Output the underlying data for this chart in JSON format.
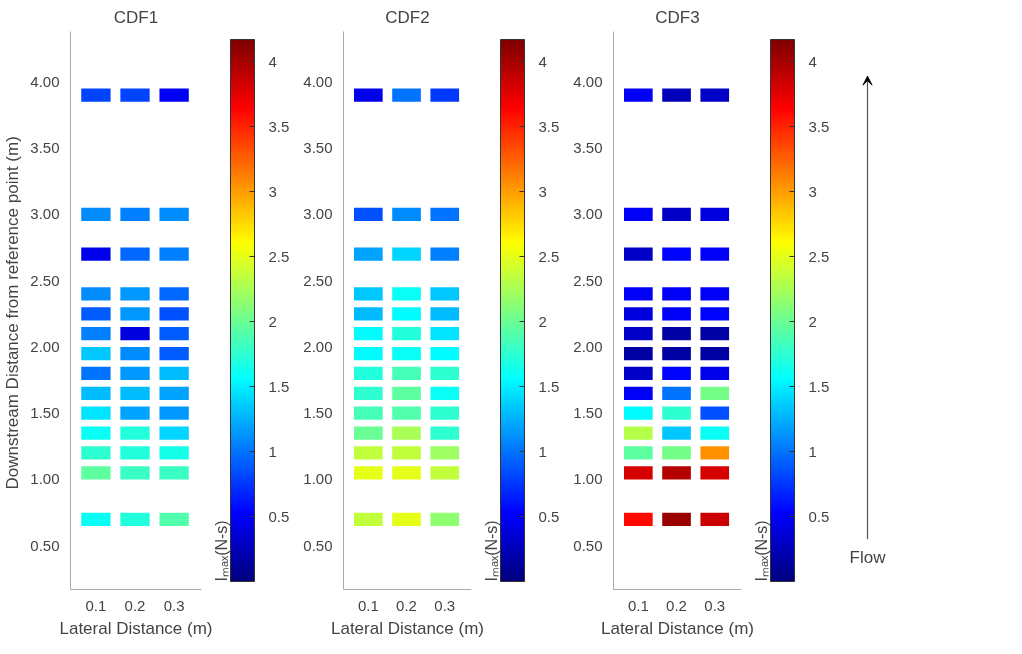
{
  "chart_data": [
    {
      "type": "scatter",
      "title": "CDF1",
      "xlabel": "Lateral Distance (m)",
      "ylabel": "Downstream  Distance from reference point (m)",
      "clabel": "Iₘₐₓ(N-s)",
      "marker": "square",
      "grid": false,
      "xlim": [
        0.035,
        0.37
      ],
      "ylim": [
        0.17,
        4.38
      ],
      "xticks": [
        0.1,
        0.2,
        0.3
      ],
      "yticks": [
        {
          "value": 0.5,
          "label": "0.50"
        },
        {
          "value": 1,
          "label": "1.00"
        },
        {
          "value": 1.5,
          "label": "1.50"
        },
        {
          "value": 2,
          "label": "2.00"
        },
        {
          "value": 2.5,
          "label": "2.50"
        },
        {
          "value": 3,
          "label": "3.00"
        },
        {
          "value": 3.5,
          "label": "3.50"
        },
        {
          "value": 4,
          "label": "4.00"
        }
      ],
      "clim": [
        0,
        4.17
      ],
      "cticks": [
        0.5,
        1,
        1.5,
        2,
        2.5,
        3,
        3.5,
        4
      ],
      "x": [
        0.1,
        0.2,
        0.3,
        0.1,
        0.2,
        0.3,
        0.1,
        0.2,
        0.3,
        0.1,
        0.2,
        0.3,
        0.1,
        0.2,
        0.3,
        0.1,
        0.2,
        0.3,
        0.1,
        0.2,
        0.3,
        0.1,
        0.2,
        0.3,
        0.1,
        0.2,
        0.3,
        0.1,
        0.2,
        0.3,
        0.1,
        0.2,
        0.3,
        0.1,
        0.2,
        0.3,
        0.1,
        0.2,
        0.3,
        0.1,
        0.2,
        0.3
      ],
      "values": [
        3.9,
        3.9,
        3.9,
        3.0,
        3.0,
        3.0,
        2.7,
        2.7,
        2.7,
        2.4,
        2.4,
        2.4,
        2.25,
        2.25,
        2.25,
        2.1,
        2.1,
        2.1,
        1.95,
        1.95,
        1.95,
        1.8,
        1.8,
        1.8,
        1.65,
        1.65,
        1.65,
        1.5,
        1.5,
        1.5,
        1.35,
        1.35,
        1.35,
        1.2,
        1.2,
        1.2,
        1.05,
        1.05,
        1.05,
        0.7,
        0.7,
        0.7
      ],
      "cvalues": [
        0.8,
        0.8,
        0.5,
        1.1,
        1.05,
        1.1,
        0.45,
        0.95,
        1.05,
        1.1,
        1.15,
        0.95,
        0.9,
        1.15,
        0.85,
        1.05,
        0.4,
        0.9,
        1.35,
        1.1,
        0.9,
        1.0,
        1.15,
        1.3,
        1.3,
        1.3,
        1.2,
        1.45,
        1.2,
        1.15,
        1.6,
        1.7,
        1.4,
        1.75,
        1.7,
        1.65,
        1.95,
        1.8,
        1.8,
        1.6,
        1.7,
        1.9
      ]
    },
    {
      "type": "scatter",
      "title": "CDF2",
      "xlabel": "Lateral Distance (m)",
      "clabel": "Iₘₐₓ(N-s)",
      "marker": "square",
      "grid": false,
      "xlim": [
        0.035,
        0.37
      ],
      "ylim": [
        0.17,
        4.38
      ],
      "xticks": [
        0.1,
        0.2,
        0.3
      ],
      "yticks": [
        {
          "value": 0.5,
          "label": "0.50"
        },
        {
          "value": 1,
          "label": "1.00"
        },
        {
          "value": 1.5,
          "label": "1.50"
        },
        {
          "value": 2,
          "label": "2.00"
        },
        {
          "value": 2.5,
          "label": "2.50"
        },
        {
          "value": 3,
          "label": "3.00"
        },
        {
          "value": 3.5,
          "label": "3.50"
        },
        {
          "value": 4,
          "label": "4.00"
        }
      ],
      "clim": [
        0,
        4.17
      ],
      "cticks": [
        0.5,
        1,
        1.5,
        2,
        2.5,
        3,
        3.5,
        4
      ],
      "x": [
        0.1,
        0.2,
        0.3,
        0.1,
        0.2,
        0.3,
        0.1,
        0.2,
        0.3,
        0.1,
        0.2,
        0.3,
        0.1,
        0.2,
        0.3,
        0.1,
        0.2,
        0.3,
        0.1,
        0.2,
        0.3,
        0.1,
        0.2,
        0.3,
        0.1,
        0.2,
        0.3,
        0.1,
        0.2,
        0.3,
        0.1,
        0.2,
        0.3,
        0.1,
        0.2,
        0.3,
        0.1,
        0.2,
        0.3,
        0.1,
        0.2,
        0.3
      ],
      "values": [
        3.9,
        3.9,
        3.9,
        3.0,
        3.0,
        3.0,
        2.7,
        2.7,
        2.7,
        2.4,
        2.4,
        2.4,
        2.25,
        2.25,
        2.25,
        2.1,
        2.1,
        2.1,
        1.95,
        1.95,
        1.95,
        1.8,
        1.8,
        1.8,
        1.65,
        1.65,
        1.65,
        1.5,
        1.5,
        1.5,
        1.35,
        1.35,
        1.35,
        1.2,
        1.2,
        1.2,
        1.05,
        1.05,
        1.05,
        0.7,
        0.7,
        0.7
      ],
      "cvalues": [
        0.45,
        1.0,
        0.75,
        0.85,
        1.1,
        1.0,
        1.2,
        1.4,
        1.05,
        1.35,
        1.6,
        1.35,
        1.3,
        1.55,
        1.3,
        1.55,
        1.7,
        1.45,
        1.55,
        1.6,
        1.55,
        1.7,
        1.85,
        1.75,
        1.75,
        1.95,
        1.6,
        1.85,
        1.9,
        1.75,
        2.0,
        2.25,
        1.75,
        2.35,
        2.35,
        2.2,
        2.5,
        2.5,
        2.35,
        2.35,
        2.5,
        2.15
      ]
    },
    {
      "type": "scatter",
      "title": "CDF3",
      "xlabel": "Lateral Distance (m)",
      "clabel": "Iₘₐₓ(N-s)",
      "marker": "square",
      "grid": false,
      "annotations": [
        "Flow"
      ],
      "xlim": [
        0.035,
        0.37
      ],
      "ylim": [
        0.17,
        4.38
      ],
      "xticks": [
        0.1,
        0.2,
        0.3
      ],
      "yticks": [
        {
          "value": 0.5,
          "label": "0.50"
        },
        {
          "value": 1,
          "label": "1.00"
        },
        {
          "value": 1.5,
          "label": "1.50"
        },
        {
          "value": 2,
          "label": "2.00"
        },
        {
          "value": 2.5,
          "label": "2.50"
        },
        {
          "value": 3,
          "label": "3.00"
        },
        {
          "value": 3.5,
          "label": "3.50"
        },
        {
          "value": 4,
          "label": "4.00"
        }
      ],
      "clim": [
        0,
        4.17
      ],
      "cticks": [
        0.5,
        1,
        1.5,
        2,
        2.5,
        3,
        3.5,
        4
      ],
      "x": [
        0.1,
        0.2,
        0.3,
        0.1,
        0.2,
        0.3,
        0.1,
        0.2,
        0.3,
        0.1,
        0.2,
        0.3,
        0.1,
        0.2,
        0.3,
        0.1,
        0.2,
        0.3,
        0.1,
        0.2,
        0.3,
        0.1,
        0.2,
        0.3,
        0.1,
        0.2,
        0.3,
        0.1,
        0.2,
        0.3,
        0.1,
        0.2,
        0.3,
        0.1,
        0.2,
        0.3,
        0.1,
        0.2,
        0.3,
        0.1,
        0.2,
        0.3
      ],
      "values": [
        3.9,
        3.9,
        3.9,
        3.0,
        3.0,
        3.0,
        2.7,
        2.7,
        2.7,
        2.4,
        2.4,
        2.4,
        2.25,
        2.25,
        2.25,
        2.1,
        2.1,
        2.1,
        1.95,
        1.95,
        1.95,
        1.8,
        1.8,
        1.8,
        1.65,
        1.65,
        1.65,
        1.5,
        1.5,
        1.5,
        1.35,
        1.35,
        1.35,
        1.2,
        1.2,
        1.2,
        1.05,
        1.05,
        1.05,
        0.7,
        0.7,
        0.7
      ],
      "cvalues": [
        0.5,
        0.25,
        0.3,
        0.5,
        0.3,
        0.4,
        0.3,
        0.55,
        0.5,
        0.5,
        0.5,
        0.5,
        0.4,
        0.5,
        0.55,
        0.3,
        0.15,
        0.15,
        0.15,
        0.15,
        0.15,
        0.3,
        0.55,
        0.45,
        0.5,
        1.0,
        2.05,
        1.55,
        1.75,
        0.85,
        2.3,
        1.35,
        1.6,
        1.95,
        2.05,
        3.05,
        3.8,
        3.95,
        3.8,
        3.6,
        4.05,
        3.85
      ]
    }
  ]
}
